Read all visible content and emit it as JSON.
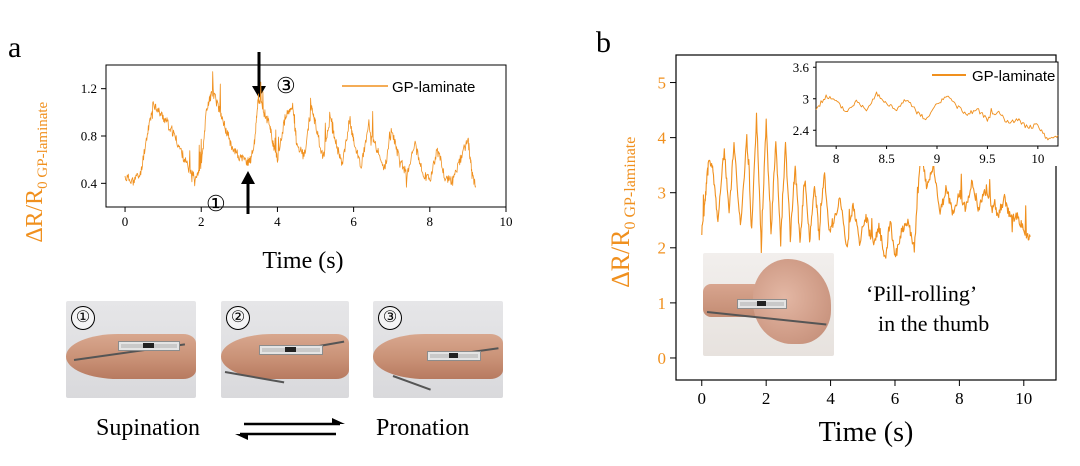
{
  "panel_a": {
    "label": "a",
    "ylabel_main": "∆R/R",
    "ylabel_sub": "0 GP-laminate",
    "xlabel": "Time (s)",
    "legend": "GP-laminate",
    "markers": {
      "one": "①",
      "three": "③"
    },
    "photo_labels": [
      "①",
      "②",
      "③"
    ],
    "supination": "Supination",
    "pronation": "Pronation"
  },
  "panel_b": {
    "label": "b",
    "ylabel_main": "∆R/R",
    "ylabel_sub": "0 GP-laminate",
    "xlabel": "Time (s)",
    "annotation_line1": "‘Pill-rolling’",
    "annotation_line2": "in the thumb",
    "inset_legend": "GP-laminate"
  },
  "colors": {
    "series": "#f0901e",
    "axis": "#000000",
    "ylabel": "#f0901e"
  },
  "chart_data": [
    {
      "type": "line",
      "id": "panel-a",
      "title": "",
      "xlabel": "Time (s)",
      "ylabel": "∆R/R0 GP-laminate",
      "xlim": [
        -0.5,
        10
      ],
      "ylim": [
        0.2,
        1.4
      ],
      "xticks": [
        0,
        2,
        4,
        6,
        8,
        10
      ],
      "yticks": [
        0.4,
        0.8,
        1.2
      ],
      "series": [
        {
          "name": "GP-laminate",
          "x": [
            0,
            0.2,
            0.4,
            0.6,
            0.75,
            0.9,
            1.1,
            1.3,
            1.5,
            1.7,
            1.85,
            2.0,
            2.15,
            2.3,
            2.5,
            2.65,
            2.8,
            3.0,
            3.2,
            3.3,
            3.4,
            3.5,
            3.65,
            3.8,
            3.9,
            4.0,
            4.2,
            4.4,
            4.5,
            4.7,
            4.9,
            5.0,
            5.2,
            5.4,
            5.5,
            5.7,
            5.9,
            6.0,
            6.2,
            6.4,
            6.6,
            6.8,
            7.0,
            7.2,
            7.4,
            7.6,
            7.8,
            8.0,
            8.2,
            8.4,
            8.6,
            8.8,
            9.0,
            9.1,
            9.2
          ],
          "values": [
            0.45,
            0.43,
            0.47,
            0.85,
            1.08,
            1.0,
            0.92,
            0.8,
            0.65,
            0.5,
            0.46,
            0.55,
            1.05,
            1.18,
            1.0,
            0.85,
            0.72,
            0.62,
            0.58,
            0.6,
            0.75,
            1.12,
            1.0,
            0.9,
            0.7,
            0.6,
            0.95,
            1.05,
            0.75,
            0.62,
            1.05,
            0.9,
            0.6,
            0.98,
            0.78,
            0.55,
            0.95,
            0.75,
            0.55,
            0.9,
            0.7,
            0.5,
            0.85,
            0.6,
            0.48,
            0.75,
            0.5,
            0.42,
            0.7,
            0.45,
            0.42,
            0.6,
            0.78,
            0.5,
            0.38
          ]
        }
      ]
    },
    {
      "type": "line",
      "id": "panel-b",
      "title": "",
      "xlabel": "Time (s)",
      "ylabel": "∆R/R0 GP-laminate",
      "xlim": [
        -0.8,
        11
      ],
      "ylim": [
        -0.4,
        5.5
      ],
      "xticks": [
        0,
        2,
        4,
        6,
        8,
        10
      ],
      "yticks": [
        0,
        1,
        2,
        3,
        4,
        5
      ],
      "series": [
        {
          "name": "GP-laminate",
          "x": [
            0,
            0.1,
            0.2,
            0.35,
            0.5,
            0.7,
            0.85,
            1.0,
            1.2,
            1.4,
            1.55,
            1.7,
            1.85,
            2.0,
            2.15,
            2.3,
            2.45,
            2.6,
            2.75,
            2.9,
            3.05,
            3.2,
            3.35,
            3.5,
            3.65,
            3.8,
            3.95,
            4.1,
            4.3,
            4.5,
            4.7,
            4.9,
            5.1,
            5.3,
            5.5,
            5.7,
            5.85,
            6.0,
            6.2,
            6.4,
            6.6,
            6.8,
            7.0,
            7.2,
            7.4,
            7.6,
            7.8,
            8.0,
            8.2,
            8.4,
            8.6,
            8.8,
            9.0,
            9.2,
            9.4,
            9.6,
            9.8,
            10.0,
            10.2
          ],
          "values": [
            2.3,
            2.8,
            3.6,
            3.4,
            2.5,
            3.8,
            2.6,
            3.9,
            2.4,
            4.0,
            2.3,
            4.4,
            2.0,
            4.3,
            2.2,
            4.0,
            2.1,
            3.9,
            2.2,
            3.5,
            2.1,
            3.3,
            2.1,
            3.2,
            2.2,
            3.4,
            2.3,
            2.5,
            2.9,
            2.0,
            2.8,
            2.1,
            2.6,
            2.0,
            2.4,
            1.8,
            2.5,
            1.8,
            2.3,
            2.5,
            2.0,
            3.7,
            3.1,
            3.5,
            2.6,
            3.1,
            2.6,
            3.0,
            2.7,
            3.2,
            2.7,
            3.0,
            2.8,
            2.6,
            2.9,
            2.5,
            2.6,
            2.3,
            2.2
          ]
        }
      ]
    },
    {
      "type": "line",
      "id": "panel-b-inset",
      "title": "",
      "xlabel": "",
      "ylabel": "",
      "xlim": [
        7.8,
        10.2
      ],
      "ylim": [
        2.1,
        3.7
      ],
      "xticks": [
        8,
        8.5,
        9,
        9.5,
        10
      ],
      "yticks": [
        2.4,
        3,
        3.6
      ],
      "series": [
        {
          "name": "GP-laminate",
          "x": [
            7.8,
            7.9,
            8.0,
            8.1,
            8.2,
            8.3,
            8.4,
            8.5,
            8.6,
            8.7,
            8.8,
            8.9,
            9.0,
            9.1,
            9.2,
            9.3,
            9.4,
            9.5,
            9.6,
            9.7,
            9.8,
            9.9,
            10.0,
            10.1,
            10.2
          ],
          "values": [
            2.8,
            3.05,
            2.95,
            2.75,
            2.95,
            2.8,
            3.1,
            2.9,
            2.8,
            3.0,
            2.75,
            2.6,
            2.9,
            3.05,
            2.85,
            2.7,
            2.8,
            2.6,
            2.75,
            2.55,
            2.6,
            2.45,
            2.5,
            2.2,
            2.3
          ]
        }
      ]
    }
  ]
}
